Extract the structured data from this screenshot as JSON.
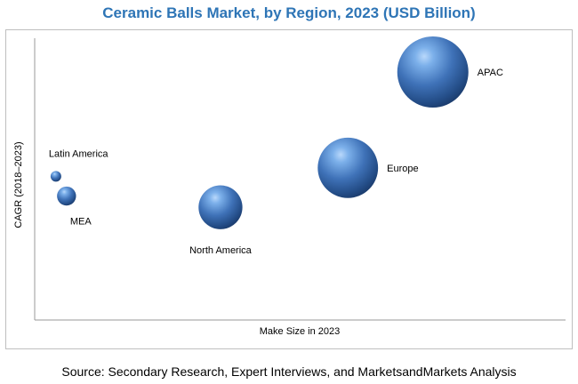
{
  "chart_data": {
    "type": "scatter",
    "variant": "bubble",
    "title": "Ceramic Balls Market, by Region, 2023 (USD Billion)",
    "xlabel": "Make Size in 2023",
    "ylabel": "CAGR (2018–2023)",
    "x_ticks_shown": false,
    "y_ticks_shown": false,
    "grid": false,
    "legend": "none",
    "xlim": [
      0,
      100
    ],
    "ylim": [
      0,
      100
    ],
    "bubble_color": "#3f72b8",
    "series": [
      {
        "points": [
          {
            "label": "Latin America",
            "x": 4,
            "y": 51,
            "size": 1
          },
          {
            "label": "MEA",
            "x": 6,
            "y": 44,
            "size": 2
          },
          {
            "label": "North America",
            "x": 35,
            "y": 40,
            "size": 7
          },
          {
            "label": "Europe",
            "x": 59,
            "y": 54,
            "size": 12
          },
          {
            "label": "APAC",
            "x": 75,
            "y": 88,
            "size": 16
          }
        ]
      }
    ]
  },
  "source": "Source: Secondary Research, Expert Interviews, and MarketsandMarkets Analysis"
}
